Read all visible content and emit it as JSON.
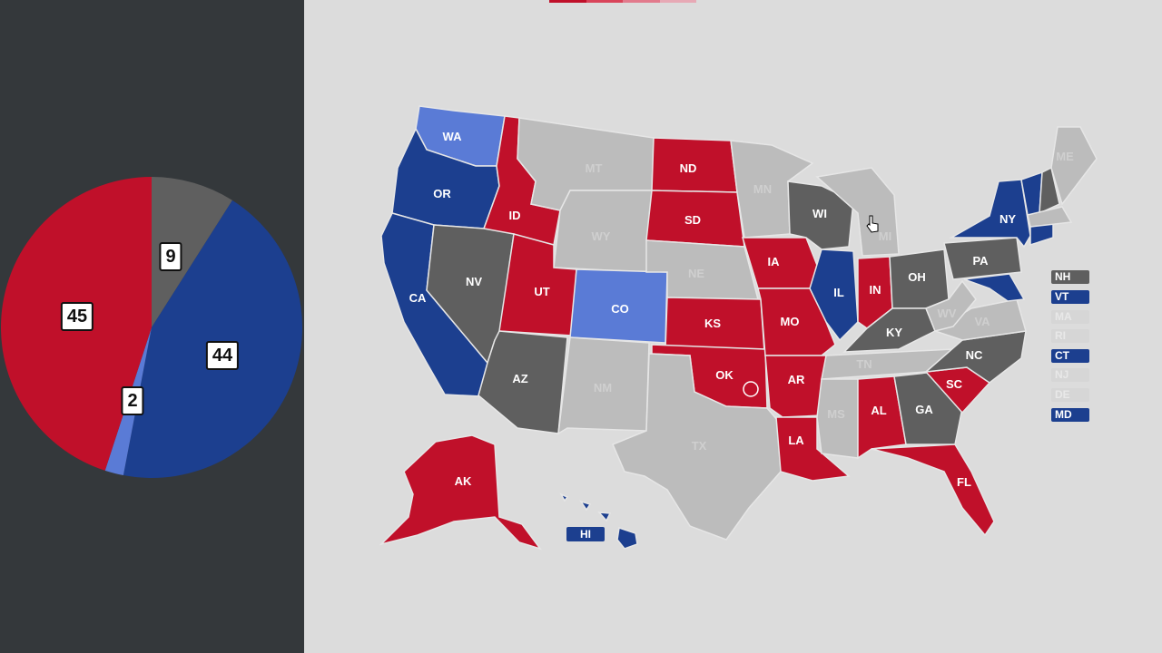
{
  "colors": {
    "safe_r": "#c0102a",
    "safe_d": "#1c3f8f",
    "likely_d": "#5a7bd6",
    "tossup": "#5f5f5f",
    "nodata": "#bcbcbc",
    "nodata_text": "#cfcfcf"
  },
  "pie": {
    "segments": [
      {
        "key": "tossup",
        "value": 9,
        "label": "9",
        "color": "#5f5f5f"
      },
      {
        "key": "safe_d",
        "value": 44,
        "label": "44",
        "color": "#1c3f8f"
      },
      {
        "key": "likely_d",
        "value": 2,
        "label": "2",
        "color": "#5a7bd6"
      },
      {
        "key": "safe_r",
        "value": 45,
        "label": "45",
        "color": "#c0102a"
      }
    ]
  },
  "legend_bar": [
    "#c0102a",
    "#d9445a",
    "#e27a8c",
    "#e7a9b5"
  ],
  "states": {
    "WA": "WA",
    "OR": "OR",
    "CA": "CA",
    "ID": "ID",
    "NV": "NV",
    "MT": "MT",
    "WY": "WY",
    "UT": "UT",
    "AZ": "AZ",
    "CO": "CO",
    "NM": "NM",
    "ND": "ND",
    "SD": "SD",
    "NE": "NE",
    "KS": "KS",
    "OK": "OK",
    "TX": "TX",
    "MN": "MN",
    "IA": "IA",
    "MO": "MO",
    "AR": "AR",
    "LA": "LA",
    "WI": "WI",
    "IL": "IL",
    "MI": "MI",
    "IN": "IN",
    "OH": "OH",
    "KY": "KY",
    "TN": "TN",
    "MS": "MS",
    "AL": "AL",
    "GA": "GA",
    "FL": "FL",
    "SC": "SC",
    "NC": "NC",
    "VA": "VA",
    "WV": "WV",
    "PA": "PA",
    "NY": "NY",
    "ME": "ME",
    "AK": "AK",
    "HI": "HI"
  },
  "northeast_tags": [
    {
      "label": "NH",
      "status": "tossup"
    },
    {
      "label": "VT",
      "status": "safe_d"
    },
    {
      "label": "MA",
      "status": "nodata"
    },
    {
      "label": "RI",
      "status": "nodata"
    },
    {
      "label": "CT",
      "status": "safe_d"
    },
    {
      "label": "NJ",
      "status": "nodata"
    },
    {
      "label": "DE",
      "status": "nodata"
    },
    {
      "label": "MD",
      "status": "safe_d"
    }
  ]
}
